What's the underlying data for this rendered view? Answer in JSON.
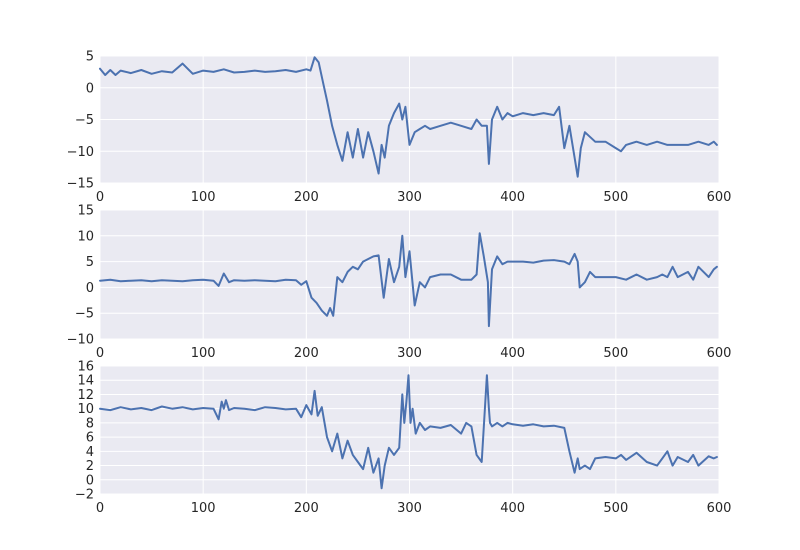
{
  "chart_data": [
    {
      "type": "line",
      "title": "",
      "xlabel": "",
      "ylabel": "",
      "xlim": [
        0,
        600
      ],
      "ylim": [
        -15,
        5
      ],
      "xticks": [
        0,
        100,
        200,
        300,
        400,
        500,
        600
      ],
      "yticks": [
        -15,
        -10,
        -5,
        0,
        5
      ],
      "ytick_labels": [
        "−15",
        "−10",
        "−5",
        "0",
        "5"
      ],
      "grid": true,
      "color": "#4c72b0",
      "series": [
        {
          "x": [
            0,
            5,
            10,
            15,
            20,
            30,
            40,
            50,
            60,
            70,
            80,
            90,
            100,
            110,
            120,
            130,
            140,
            150,
            160,
            170,
            180,
            190,
            200,
            204,
            208,
            212,
            216,
            220,
            225,
            230,
            235,
            240,
            245,
            250,
            255,
            260,
            265,
            270,
            273,
            276,
            280,
            285,
            290,
            293,
            296,
            300,
            305,
            310,
            315,
            320,
            330,
            340,
            350,
            360,
            365,
            370,
            375,
            377,
            380,
            385,
            390,
            395,
            400,
            410,
            420,
            430,
            440,
            445,
            450,
            455,
            460,
            463,
            466,
            470,
            480,
            490,
            500,
            505,
            510,
            520,
            530,
            540,
            550,
            560,
            570,
            580,
            590,
            595,
            598
          ],
          "y": [
            3,
            2,
            2.8,
            2,
            2.7,
            2.3,
            2.8,
            2.2,
            2.6,
            2.4,
            3.8,
            2.2,
            2.7,
            2.5,
            2.9,
            2.4,
            2.5,
            2.7,
            2.5,
            2.6,
            2.8,
            2.5,
            2.9,
            2.7,
            4.8,
            4,
            1,
            -2,
            -6,
            -9,
            -11.5,
            -7,
            -11,
            -6.5,
            -11,
            -7,
            -10,
            -13.5,
            -9,
            -11,
            -6,
            -4,
            -2.5,
            -5,
            -3,
            -9,
            -7,
            -6.5,
            -6,
            -6.5,
            -6,
            -5.5,
            -6,
            -6.5,
            -5,
            -6,
            -6,
            -12,
            -5,
            -3,
            -5,
            -4,
            -4.5,
            -4,
            -4.3,
            -4,
            -4.3,
            -3,
            -9.5,
            -6,
            -11,
            -14,
            -9.5,
            -7,
            -8.5,
            -8.5,
            -9.5,
            -10,
            -9,
            -8.5,
            -9,
            -8.5,
            -9,
            -9,
            -9,
            -8.5,
            -9,
            -8.5,
            -9
          ]
        }
      ]
    },
    {
      "type": "line",
      "title": "",
      "xlabel": "",
      "ylabel": "",
      "xlim": [
        0,
        600
      ],
      "ylim": [
        -10,
        15
      ],
      "xticks": [
        0,
        100,
        200,
        300,
        400,
        500,
        600
      ],
      "yticks": [
        -10,
        -5,
        0,
        5,
        10,
        15
      ],
      "ytick_labels": [
        "−10",
        "−5",
        "0",
        "5",
        "10",
        "15"
      ],
      "grid": true,
      "color": "#4c72b0",
      "series": [
        {
          "x": [
            0,
            10,
            20,
            30,
            40,
            50,
            60,
            70,
            80,
            90,
            100,
            110,
            115,
            120,
            125,
            130,
            140,
            150,
            160,
            170,
            180,
            190,
            195,
            200,
            205,
            210,
            215,
            220,
            223,
            226,
            230,
            235,
            240,
            245,
            250,
            255,
            260,
            265,
            270,
            275,
            280,
            285,
            290,
            293,
            296,
            300,
            305,
            310,
            315,
            320,
            330,
            340,
            350,
            360,
            365,
            368,
            372,
            376,
            377,
            380,
            385,
            390,
            395,
            400,
            410,
            420,
            430,
            440,
            450,
            455,
            460,
            463,
            465,
            470,
            475,
            480,
            490,
            500,
            510,
            520,
            530,
            540,
            545,
            550,
            555,
            560,
            570,
            575,
            580,
            590,
            595,
            598
          ],
          "y": [
            1.3,
            1.5,
            1.2,
            1.3,
            1.4,
            1.2,
            1.4,
            1.3,
            1.2,
            1.4,
            1.5,
            1.3,
            0.3,
            2.7,
            1,
            1.4,
            1.3,
            1.4,
            1.3,
            1.2,
            1.5,
            1.4,
            0.5,
            1.2,
            -2,
            -3,
            -4.5,
            -5.5,
            -4,
            -5.5,
            2,
            1,
            3,
            4,
            3.5,
            5,
            5.5,
            6,
            6.2,
            -2,
            5.5,
            1,
            4,
            10,
            2,
            7,
            -3.5,
            1,
            0,
            2,
            2.5,
            2.5,
            1.5,
            1.5,
            2.5,
            10.5,
            6,
            1,
            -7.5,
            3.5,
            6,
            4.5,
            5,
            5,
            5,
            4.8,
            5.2,
            5.3,
            5,
            4.5,
            6.5,
            5,
            0,
            1,
            3,
            2,
            2,
            2,
            1.5,
            2.5,
            1.5,
            2,
            2.5,
            2,
            4,
            2,
            3,
            1.5,
            4,
            2,
            3.5,
            4
          ]
        }
      ]
    },
    {
      "type": "line",
      "title": "",
      "xlabel": "",
      "ylabel": "",
      "xlim": [
        0,
        600
      ],
      "ylim": [
        -2,
        16
      ],
      "xticks": [
        0,
        100,
        200,
        300,
        400,
        500,
        600
      ],
      "yticks": [
        -2,
        0,
        2,
        4,
        6,
        8,
        10,
        12,
        14,
        16
      ],
      "ytick_labels": [
        "−2",
        "0",
        "2",
        "4",
        "6",
        "8",
        "10",
        "12",
        "14",
        "16"
      ],
      "grid": true,
      "color": "#4c72b0",
      "series": [
        {
          "x": [
            0,
            10,
            20,
            30,
            40,
            50,
            60,
            70,
            80,
            90,
            100,
            110,
            115,
            118,
            120,
            122,
            125,
            130,
            140,
            150,
            160,
            170,
            180,
            190,
            195,
            200,
            205,
            208,
            211,
            215,
            220,
            225,
            230,
            235,
            240,
            245,
            250,
            255,
            260,
            265,
            270,
            273,
            276,
            280,
            285,
            290,
            293,
            295,
            297,
            299,
            301,
            303,
            306,
            310,
            315,
            320,
            330,
            340,
            350,
            355,
            360,
            365,
            370,
            375,
            377,
            378,
            380,
            385,
            390,
            395,
            400,
            410,
            420,
            430,
            440,
            450,
            455,
            460,
            463,
            465,
            470,
            475,
            480,
            490,
            500,
            505,
            510,
            520,
            530,
            540,
            545,
            550,
            555,
            560,
            570,
            575,
            580,
            590,
            595,
            598
          ],
          "y": [
            10,
            9.8,
            10.2,
            9.9,
            10.1,
            9.8,
            10.3,
            10,
            10.2,
            9.9,
            10.1,
            10,
            8.5,
            11,
            10,
            11.2,
            9.8,
            10.1,
            10,
            9.8,
            10.2,
            10.1,
            9.9,
            10,
            8.8,
            10.5,
            9.2,
            12.5,
            9,
            10.2,
            6,
            4,
            6.5,
            3,
            5.5,
            3.5,
            2.5,
            1.5,
            4.5,
            1,
            3,
            -1.2,
            2,
            4.5,
            3.5,
            4.5,
            12,
            8,
            11,
            14.7,
            8,
            10,
            6.5,
            8,
            7,
            7.5,
            7.3,
            7.7,
            6.5,
            8,
            7.5,
            3.5,
            2.5,
            14.7,
            10,
            8,
            7.5,
            8,
            7.5,
            8,
            7.8,
            7.6,
            7.8,
            7.5,
            7.6,
            7.3,
            4,
            1,
            3,
            1.5,
            2,
            1.5,
            3,
            3.2,
            3,
            3.5,
            2.8,
            3.8,
            2.5,
            2,
            3,
            4,
            2,
            3.2,
            2.5,
            3.5,
            2,
            3.3,
            3,
            3.2
          ]
        }
      ]
    }
  ]
}
